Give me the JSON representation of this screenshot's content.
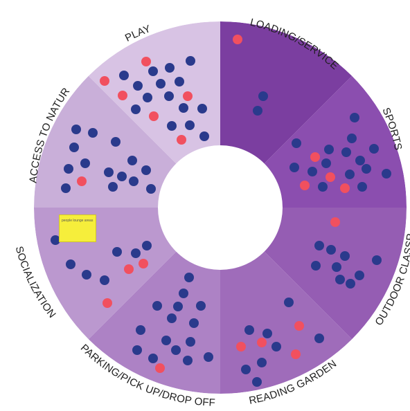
{
  "diagram": {
    "segments": [
      {
        "key": "loading",
        "label": "LOADING/SERVICE",
        "color": "#7b3ea0"
      },
      {
        "key": "sports",
        "label": "SPORTS",
        "color": "#8b4eaf"
      },
      {
        "key": "outdoor",
        "label": "OUTDOOR CLASSROOM",
        "color": "#955db3"
      },
      {
        "key": "reading",
        "label": "READING GARDEN",
        "color": "#9f6cba"
      },
      {
        "key": "parking",
        "label": "PARKING/PICK UP/DROP OFF",
        "color": "#ad82c5"
      },
      {
        "key": "socialization",
        "label": "SOCIALIZATION",
        "color": "#bb98cf"
      },
      {
        "key": "nature",
        "label": "ACCESS TO NATURE",
        "color": "#c9afd9"
      },
      {
        "key": "play",
        "label": "PLAY",
        "color": "#d8c3e4"
      }
    ],
    "marker_colors": {
      "blue": "#2a3a8c",
      "red": "#f1505f"
    },
    "sticky_note": {
      "text": "people lounge areas"
    }
  }
}
